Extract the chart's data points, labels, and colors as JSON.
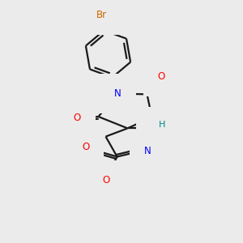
{
  "background_color": "#ebebeb",
  "bond_color": "#1a1a1a",
  "atom_colors": {
    "N": "#0000ff",
    "O": "#ff0000",
    "Br": "#cc6600",
    "H": "#008888",
    "C": "#1a1a1a"
  },
  "figsize": [
    3.0,
    3.0
  ],
  "dpi": 100,
  "xlim": [
    0,
    10
  ],
  "ylim": [
    0,
    10
  ]
}
